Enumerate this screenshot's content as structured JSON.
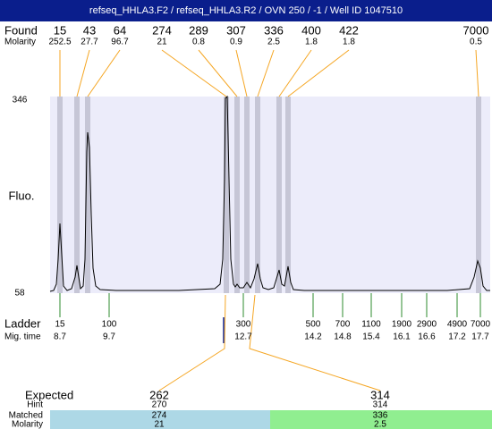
{
  "header": {
    "title": "refseq_HHLA3.F2 / refseq_HHLA3.R2 / OVN 250 / -1 / Well ID 1047510"
  },
  "found": {
    "label": "Found",
    "molarity_label": "Molarity",
    "peaks": [
      {
        "size": 15,
        "molarity": 252.5
      },
      {
        "size": 43,
        "molarity": 27.7
      },
      {
        "size": 64,
        "molarity": 96.7
      },
      {
        "size": 274,
        "molarity": 21
      },
      {
        "size": 289,
        "molarity": 0.8
      },
      {
        "size": 307,
        "molarity": 0.9
      },
      {
        "size": 336,
        "molarity": 2.5
      },
      {
        "size": 400,
        "molarity": 1.8
      },
      {
        "size": 422,
        "molarity": 1.8
      },
      {
        "size": 7000,
        "molarity": 0.5
      }
    ]
  },
  "axis": {
    "label": "Fluo.",
    "top": 346,
    "bottom": 58
  },
  "ladder": {
    "label": "Ladder",
    "time_label": "Mig. time",
    "bands": [
      {
        "size": 15,
        "time": 8.7
      },
      {
        "size": 100,
        "time": 9.7
      },
      {
        "size": 300,
        "time": 12.7
      },
      {
        "size": 500,
        "time": 14.2
      },
      {
        "size": 700,
        "time": 14.8
      },
      {
        "size": 1100,
        "time": 15.4
      },
      {
        "size": 1900,
        "time": 16.1
      },
      {
        "size": 2900,
        "time": 16.6
      },
      {
        "size": 4900,
        "time": 17.2
      },
      {
        "size": 7000,
        "time": 17.7
      }
    ]
  },
  "expected": {
    "label": "Expected",
    "hint_label": "Hint",
    "matched_label": "Matched",
    "molarity_label": "Molarity",
    "targets": [
      {
        "size": 262,
        "hint": 270,
        "matched": 274,
        "molarity": 21
      },
      {
        "size": 314,
        "hint": 314,
        "matched": 336,
        "molarity": 2.5
      }
    ]
  }
}
